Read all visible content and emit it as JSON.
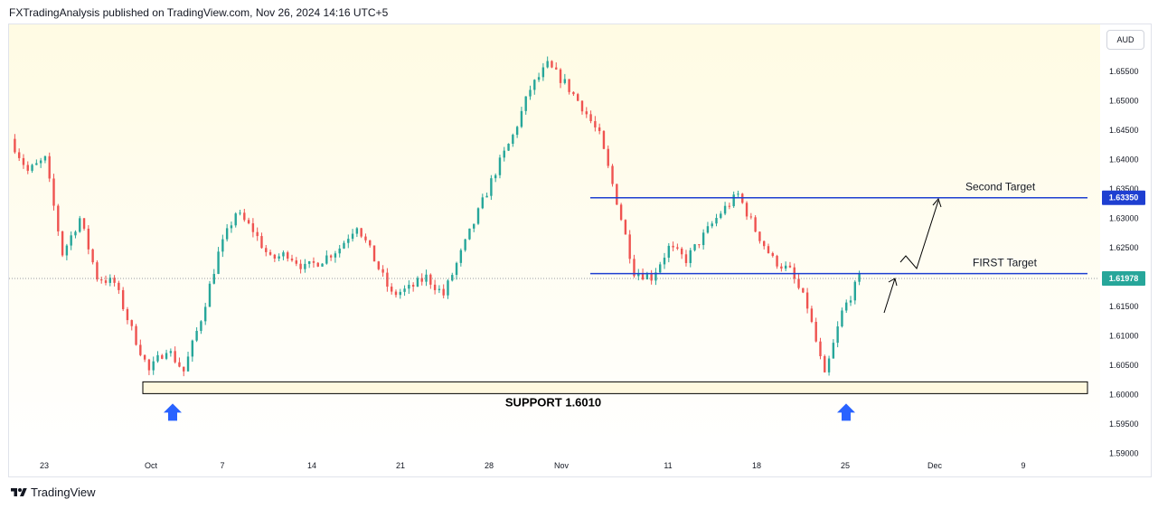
{
  "header": {
    "text": "FXTradingAnalysis published on TradingView.com, Nov 26, 2024 14:16 UTC+5"
  },
  "currency_label": "AUD",
  "footer": {
    "brand": "TradingView",
    "icon": "tradingview-logo-icon"
  },
  "colors": {
    "up": "#26a69a",
    "down": "#ef5350",
    "target_line": "#1e3fd1",
    "current_price_tag": "#26a69a",
    "target_price_tag": "#1e3fd1",
    "support_arrow": "#2962ff",
    "background_top": "#fffbe6",
    "background_bottom": "#ffffff"
  },
  "chart_data": {
    "type": "candlestick",
    "y_axis_ticks": [
      "1.65500",
      "1.65000",
      "1.64500",
      "1.64000",
      "1.63500",
      "1.63000",
      "1.62500",
      "1.61500",
      "1.61000",
      "1.60500",
      "1.60000",
      "1.59500",
      "1.59000"
    ],
    "x_axis_ticks": [
      "23",
      "Oct",
      "7",
      "14",
      "21",
      "28",
      "Nov",
      "11",
      "18",
      "25",
      "Dec",
      "9"
    ],
    "ylim": [
      1.5895,
      1.6625
    ],
    "price_tags": [
      {
        "value": "1.63350",
        "price": 1.6335,
        "kind": "target"
      },
      {
        "value": "1.61978",
        "price": 1.61978,
        "kind": "current"
      }
    ],
    "annotations": {
      "second_target": {
        "label": "Second Target",
        "price": 1.6335
      },
      "first_target": {
        "label": "FIRST Target",
        "price": 1.6206
      },
      "support": {
        "label": "SUPPORT 1.6010",
        "price_low": 1.6002,
        "price_high": 1.6022
      }
    },
    "price_path": [
      {
        "date": "Sep 19",
        "price": 1.6435
      },
      {
        "date": "Sep 20",
        "price": 1.638
      },
      {
        "date": "Sep 23",
        "price": 1.64
      },
      {
        "date": "Sep 24",
        "price": 1.624
      },
      {
        "date": "Sep 25",
        "price": 1.63
      },
      {
        "date": "Sep 26",
        "price": 1.62
      },
      {
        "date": "Sep 27",
        "price": 1.619
      },
      {
        "date": "Sep 30",
        "price": 1.611
      },
      {
        "date": "Oct 1",
        "price": 1.604
      },
      {
        "date": "Oct 2",
        "price": 1.608
      },
      {
        "date": "Oct 3",
        "price": 1.604
      },
      {
        "date": "Oct 4",
        "price": 1.613
      },
      {
        "date": "Oct 7",
        "price": 1.624
      },
      {
        "date": "Oct 8",
        "price": 1.631
      },
      {
        "date": "Oct 9",
        "price": 1.628
      },
      {
        "date": "Oct 10",
        "price": 1.623
      },
      {
        "date": "Oct 11",
        "price": 1.624
      },
      {
        "date": "Oct 14",
        "price": 1.6215
      },
      {
        "date": "Oct 15",
        "price": 1.623
      },
      {
        "date": "Oct 16",
        "price": 1.625
      },
      {
        "date": "Oct 17",
        "price": 1.629
      },
      {
        "date": "Oct 18",
        "price": 1.623
      },
      {
        "date": "Oct 21",
        "price": 1.617
      },
      {
        "date": "Oct 22",
        "price": 1.618
      },
      {
        "date": "Oct 23",
        "price": 1.62
      },
      {
        "date": "Oct 24",
        "price": 1.617
      },
      {
        "date": "Oct 25",
        "price": 1.624
      },
      {
        "date": "Oct 28",
        "price": 1.631
      },
      {
        "date": "Oct 29",
        "price": 1.638
      },
      {
        "date": "Oct 30",
        "price": 1.644
      },
      {
        "date": "Oct 31",
        "price": 1.652
      },
      {
        "date": "Nov 1",
        "price": 1.656
      },
      {
        "date": "Nov 4",
        "price": 1.653
      },
      {
        "date": "Nov 5",
        "price": 1.649
      },
      {
        "date": "Nov 6",
        "price": 1.644
      },
      {
        "date": "Nov 7",
        "price": 1.633
      },
      {
        "date": "Nov 8",
        "price": 1.621
      },
      {
        "date": "Nov 11",
        "price": 1.62
      },
      {
        "date": "Nov 12",
        "price": 1.625
      },
      {
        "date": "Nov 13",
        "price": 1.623
      },
      {
        "date": "Nov 14",
        "price": 1.627
      },
      {
        "date": "Nov 15",
        "price": 1.631
      },
      {
        "date": "Nov 18",
        "price": 1.634
      },
      {
        "date": "Nov 19",
        "price": 1.628
      },
      {
        "date": "Nov 20",
        "price": 1.623
      },
      {
        "date": "Nov 21",
        "price": 1.621
      },
      {
        "date": "Nov 22",
        "price": 1.615
      },
      {
        "date": "Nov 25",
        "price": 1.603
      },
      {
        "date": "Nov 26",
        "price": 1.614
      },
      {
        "date": "Nov 27",
        "price": 1.6198
      }
    ]
  }
}
